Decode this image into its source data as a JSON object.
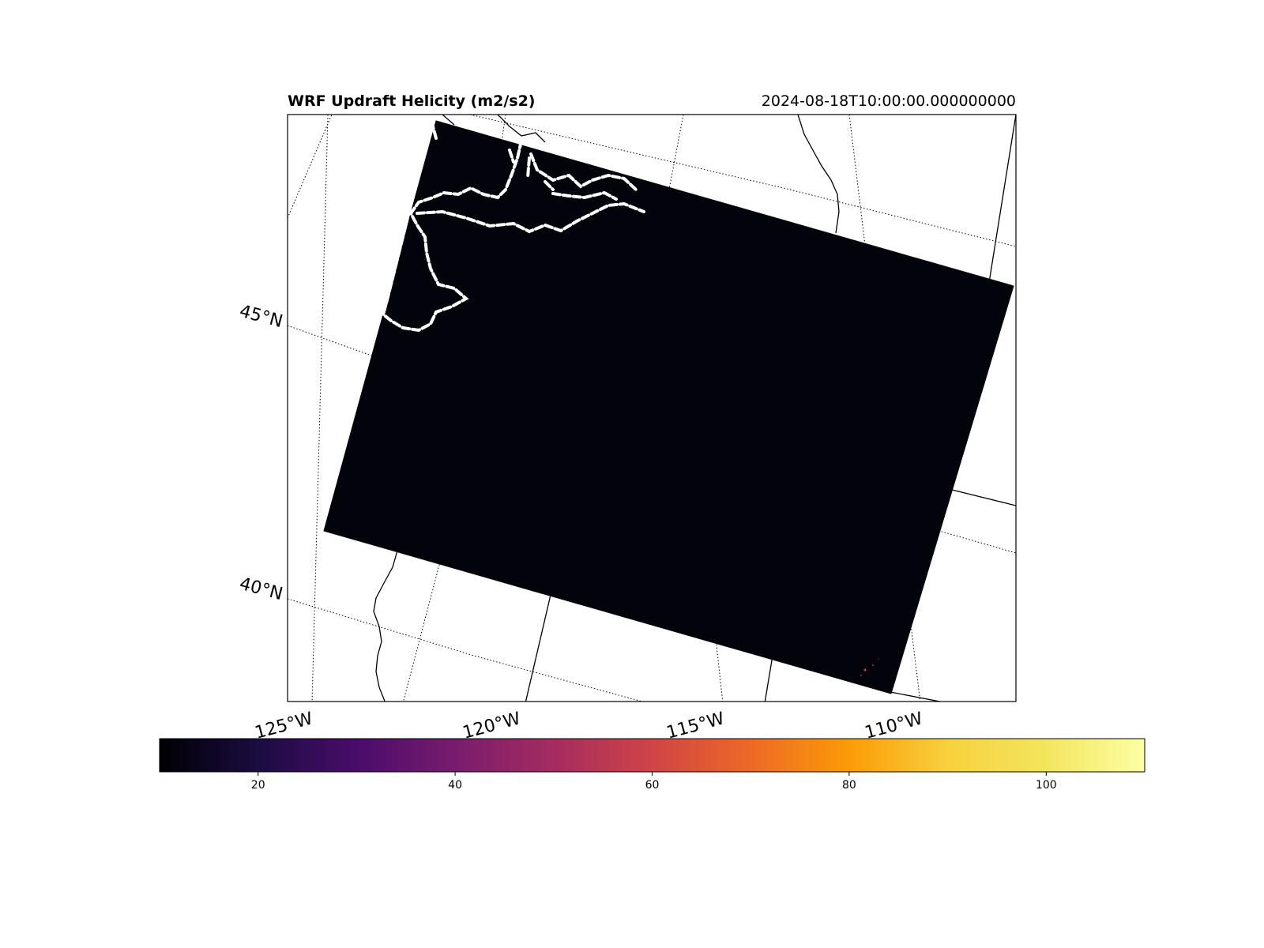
{
  "title": "WRF Updraft Helicity (m2/s2)",
  "timestamp": "2024-08-18T10:00:00.000000000",
  "lat_labels": [
    "45°N",
    "40°N"
  ],
  "lon_labels": [
    "125°W",
    "120°W",
    "115°W",
    "110°W"
  ],
  "colorbar": {
    "colormap": "inferno",
    "range": [
      10,
      110
    ],
    "ticks": [
      20,
      40,
      60,
      80,
      100
    ],
    "tick_labels": [
      "20",
      "40",
      "60",
      "80",
      "100"
    ]
  },
  "colors": {
    "field_background": "#03030b",
    "boundary": "#000000",
    "highlight_contour": "#ffffff"
  }
}
